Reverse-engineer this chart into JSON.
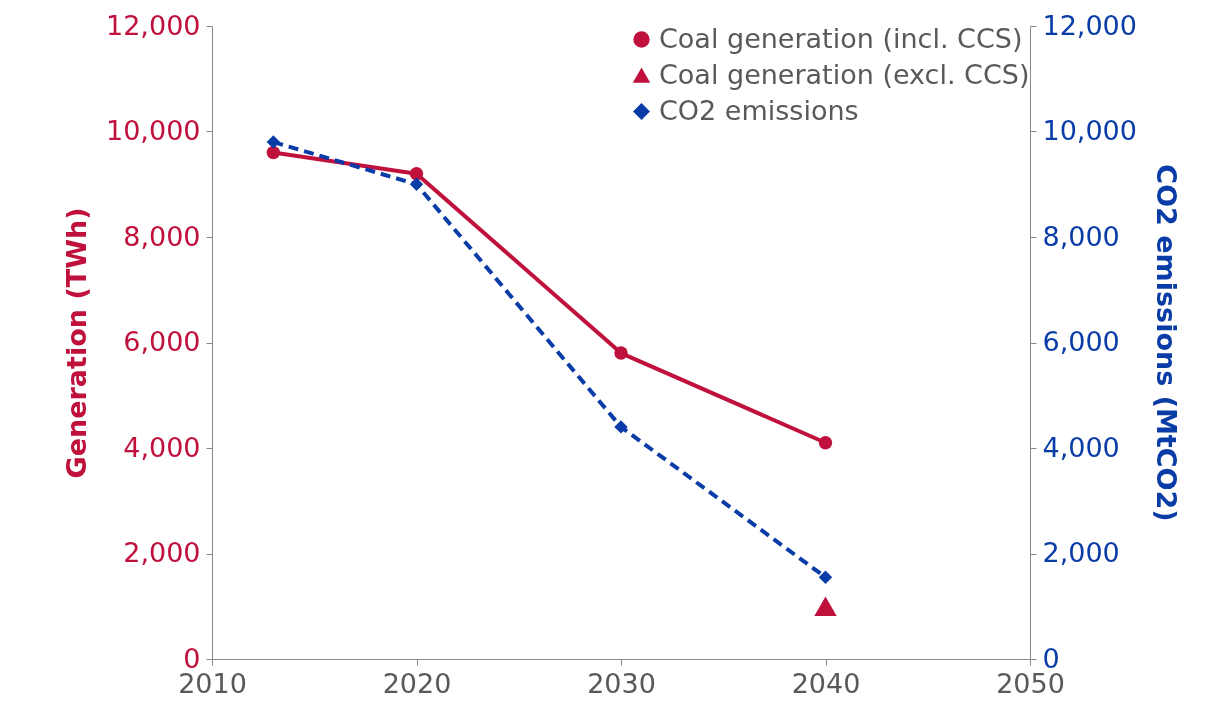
{
  "chart_data": {
    "type": "line",
    "ylabel": "Generation (TWh)",
    "y2label": "CO2 emissions (MtCO2)",
    "xlim": [
      2010,
      2050
    ],
    "xticks": [
      2010,
      2020,
      2030,
      2040,
      2050
    ],
    "ylim": [
      0,
      12000
    ],
    "yticks": [
      0,
      {
        "value": 2000,
        "label": "2,000"
      },
      {
        "value": 4000,
        "label": "4,000"
      },
      {
        "value": 6000,
        "label": "6,000"
      },
      {
        "value": 8000,
        "label": "8,000"
      },
      {
        "value": 10000,
        "label": "10,000"
      },
      {
        "value": 12000,
        "label": "12,000"
      }
    ],
    "y2lim": [
      0,
      12000
    ],
    "y2ticks": [
      0,
      {
        "value": 2000,
        "label": "2,000"
      },
      {
        "value": 4000,
        "label": "4,000"
      },
      {
        "value": 6000,
        "label": "6,000"
      },
      {
        "value": 8000,
        "label": "8,000"
      },
      {
        "value": 10000,
        "label": "10,000"
      },
      {
        "value": 12000,
        "label": "12,000"
      }
    ],
    "legend": "top right",
    "grid": false,
    "series": [
      {
        "name": "Coal generation (incl. CCS)",
        "type": "line",
        "color": "#c0103c",
        "marker": "circle",
        "line_style": "solid",
        "x": [
          2013,
          2020,
          2030,
          2040
        ],
        "values": [
          9600,
          9200,
          5800,
          4100
        ]
      },
      {
        "name": "Coal generation (excl. CCS)",
        "type": "scatter",
        "color": "#c0103c",
        "marker": "triangle",
        "x": [
          2040
        ],
        "values": [
          1000
        ]
      },
      {
        "name": "CO2 emissions",
        "type": "line",
        "color": "#0a3ca8",
        "marker": "diamond",
        "line_style": "dashed",
        "axis": "y2",
        "x": [
          2013,
          2020,
          2030,
          2040
        ],
        "values": [
          9800,
          9000,
          4400,
          1550
        ]
      }
    ]
  }
}
